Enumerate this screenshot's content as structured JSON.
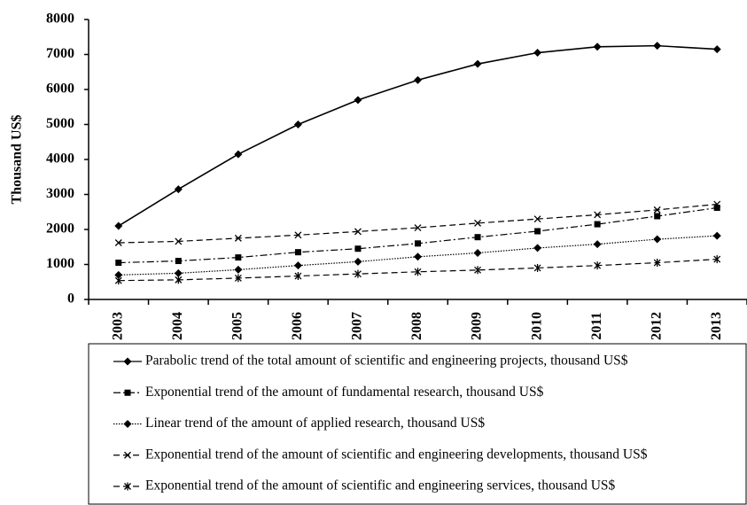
{
  "chart_data": {
    "type": "line",
    "ylabel": "Thousand US$",
    "categories": [
      "2003",
      "2004",
      "2005",
      "2006",
      "2007",
      "2008",
      "2009",
      "2010",
      "2011",
      "2012",
      "2013"
    ],
    "ylim": [
      0,
      8000
    ],
    "yticks": [
      0,
      1000,
      2000,
      3000,
      4000,
      5000,
      6000,
      7000,
      8000
    ],
    "series": [
      {
        "name": "Parabolic trend of the total amount of scientific and engineering projects, thousand US$",
        "color": "#000000",
        "dash": "solid",
        "marker": "diamond",
        "values": [
          2100,
          3150,
          4150,
          5000,
          5700,
          6270,
          6730,
          7050,
          7220,
          7250,
          7150
        ]
      },
      {
        "name": "Exponential trend of the amount of fundamental research, thousand US$",
        "color": "#000000",
        "dash": "dashdot",
        "marker": "square",
        "values": [
          1050,
          1100,
          1200,
          1350,
          1450,
          1600,
          1780,
          1950,
          2150,
          2380,
          2620
        ]
      },
      {
        "name": "Linear trend of the amount of applied research, thousand US$",
        "color": "#000000",
        "dash": "dotted",
        "marker": "diamond",
        "values": [
          700,
          750,
          850,
          970,
          1080,
          1220,
          1330,
          1470,
          1580,
          1720,
          1820
        ]
      },
      {
        "name": "Exponential trend of the amount of scientific and engineering developments, thousand US$",
        "color": "#000000",
        "dash": "dashed",
        "marker": "x",
        "values": [
          1620,
          1660,
          1750,
          1840,
          1940,
          2050,
          2180,
          2300,
          2420,
          2560,
          2720
        ]
      },
      {
        "name": "Exponential trend of the amount of scientific and engineering services, thousand US$",
        "color": "#000000",
        "dash": "dashed",
        "marker": "star",
        "values": [
          540,
          560,
          610,
          670,
          730,
          790,
          840,
          900,
          970,
          1050,
          1150
        ]
      }
    ]
  }
}
